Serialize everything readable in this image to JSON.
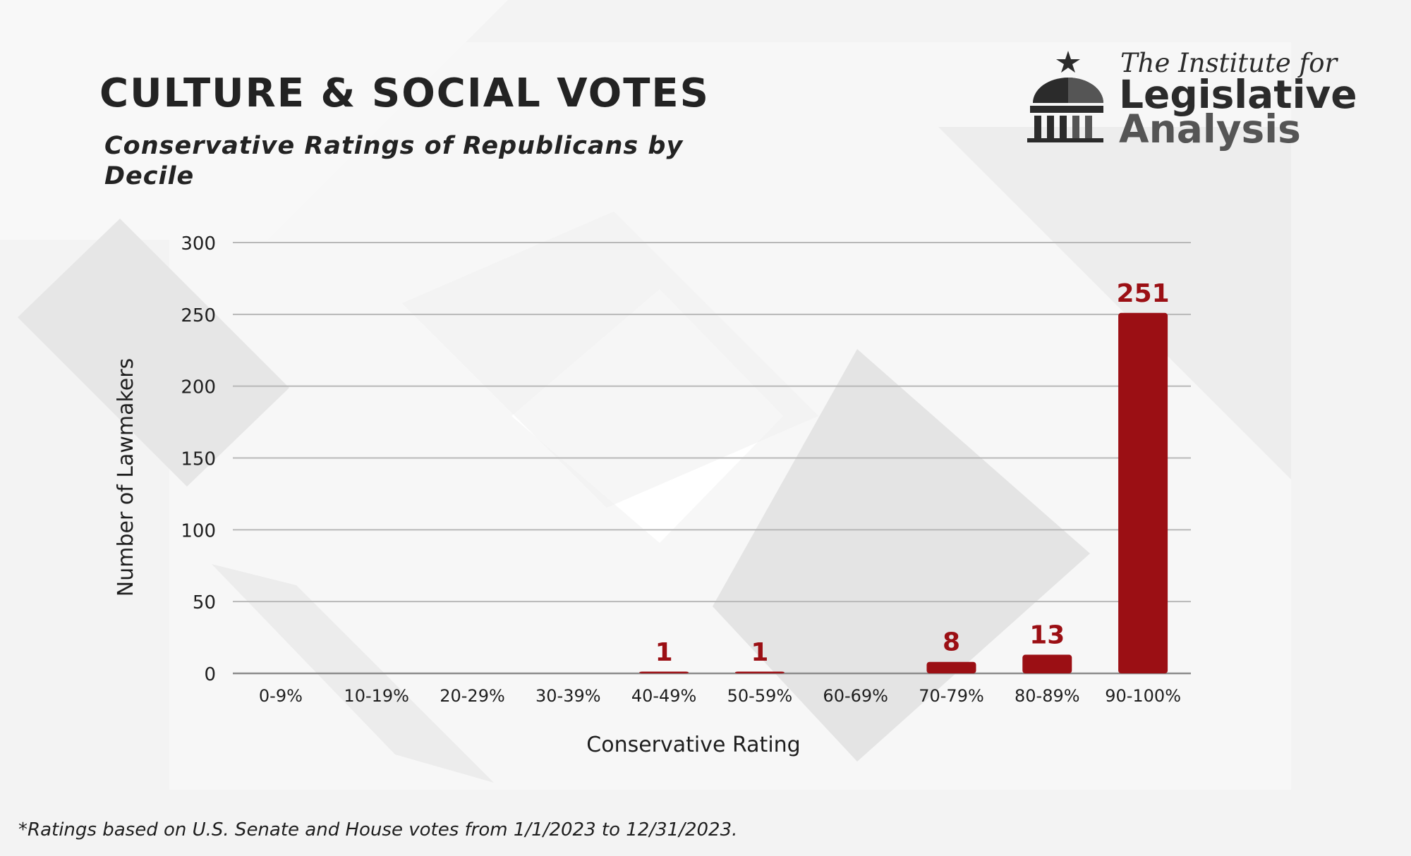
{
  "header": {
    "title": "CULTURE & SOCIAL VOTES",
    "subtitle": "Conservative Ratings of Republicans by Decile"
  },
  "logo": {
    "line1": "The Institute for",
    "line2": "Legislative",
    "line3": "Analysis",
    "icon": "capitol-dome-star-icon"
  },
  "footnote": "*Ratings based on U.S. Senate and House votes from 1/1/2023 to 12/31/2023.",
  "colors": {
    "bar": "#9b0f14",
    "grid": "#b8b8b8",
    "text": "#232323"
  },
  "chart_data": {
    "type": "bar",
    "title": "CULTURE & SOCIAL VOTES",
    "subtitle": "Conservative Ratings of Republicans by Decile",
    "xlabel": "Conservative Rating",
    "ylabel": "Number of Lawmakers",
    "categories": [
      "0-9%",
      "10-19%",
      "20-29%",
      "30-39%",
      "40-49%",
      "50-59%",
      "60-69%",
      "70-79%",
      "80-89%",
      "90-100%"
    ],
    "values": [
      0,
      0,
      0,
      0,
      1,
      1,
      0,
      8,
      13,
      251
    ],
    "data_labels": [
      "",
      "",
      "",
      "",
      "1",
      "1",
      "",
      "8",
      "13",
      "251"
    ],
    "yticks": [
      0,
      50,
      100,
      150,
      200,
      250,
      300
    ],
    "ylim": [
      0,
      300
    ],
    "grid": true,
    "legend": "none"
  }
}
